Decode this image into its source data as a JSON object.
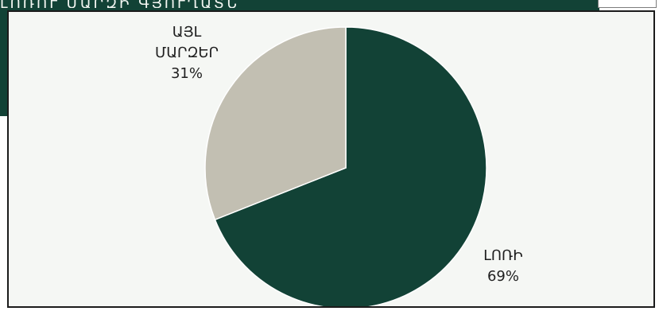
{
  "header": {
    "text": "ԼՈՌՈՒ ՄԱՐԶԻ ԳՅՈՒՂԱՏՆՏԵՍՈՒԹՅՈՒՆ"
  },
  "colors": {
    "header_bg": "#124236",
    "plot_bg": "#f5f7f4",
    "lori": "#124236",
    "other": "#c2bfb2",
    "label": "#1f1f1f"
  },
  "chart_data": {
    "type": "pie",
    "slices": [
      {
        "label_lines": [
          "ԼՈՌԻ"
        ],
        "value": 69,
        "value_label": "69%",
        "color": "#124236"
      },
      {
        "label_lines": [
          "ԱՅԼ",
          "ՄԱՐԶԵՐ"
        ],
        "value": 31,
        "value_label": "31%",
        "color": "#c2bfb2"
      }
    ]
  }
}
